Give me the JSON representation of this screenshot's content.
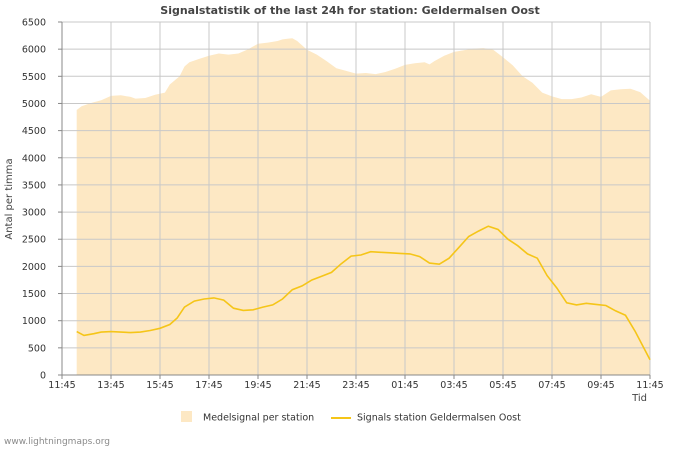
{
  "watermark": "www.lightningmaps.org",
  "chart_data": {
    "type": "area+line",
    "title": "Signalstatistik of the last 24h for station: Geldermalsen Oost",
    "ylabel": "Antal per timma",
    "xlabel": "Tid",
    "ylim": [
      0,
      6500
    ],
    "yticks": [
      0,
      500,
      1000,
      1500,
      2000,
      2500,
      3000,
      3500,
      4000,
      4500,
      5000,
      5500,
      6000,
      6500
    ],
    "xlim": [
      0,
      24
    ],
    "xticks": [
      {
        "v": 0,
        "label": "11:45"
      },
      {
        "v": 2,
        "label": "13:45"
      },
      {
        "v": 4,
        "label": "15:45"
      },
      {
        "v": 6,
        "label": "17:45"
      },
      {
        "v": 8,
        "label": "19:45"
      },
      {
        "v": 10,
        "label": "21:45"
      },
      {
        "v": 12,
        "label": "23:45"
      },
      {
        "v": 14,
        "label": "01:45"
      },
      {
        "v": 16,
        "label": "03:45"
      },
      {
        "v": 18,
        "label": "05:45"
      },
      {
        "v": 20,
        "label": "07:45"
      },
      {
        "v": 22,
        "label": "09:45"
      },
      {
        "v": 24,
        "label": "11:45"
      }
    ],
    "grid": true,
    "series": [
      {
        "name": "Medelsignal per station",
        "kind": "area",
        "color": "#fde8c4",
        "x": [
          0.6,
          0.8,
          1.2,
          1.6,
          2.0,
          2.4,
          2.8,
          3.0,
          3.4,
          3.8,
          4.2,
          4.4,
          4.8,
          5.0,
          5.2,
          5.6,
          6.0,
          6.4,
          6.8,
          7.2,
          7.6,
          8.0,
          8.4,
          8.8,
          9.0,
          9.2,
          9.4,
          9.6,
          10.0,
          10.4,
          10.8,
          11.2,
          11.6,
          12.0,
          12.4,
          12.8,
          13.2,
          13.6,
          14.0,
          14.4,
          14.8,
          15.0,
          15.2,
          15.6,
          16.0,
          16.4,
          16.8,
          17.2,
          17.6,
          18.0,
          18.4,
          18.8,
          19.2,
          19.6,
          20.0,
          20.4,
          20.8,
          21.2,
          21.6,
          22.0,
          22.4,
          22.8,
          23.2,
          23.6,
          24.0
        ],
        "values": [
          4880,
          4950,
          5010,
          5060,
          5140,
          5150,
          5120,
          5090,
          5100,
          5160,
          5200,
          5350,
          5500,
          5680,
          5760,
          5820,
          5880,
          5920,
          5900,
          5920,
          6000,
          6100,
          6120,
          6150,
          6180,
          6190,
          6200,
          6150,
          5990,
          5900,
          5780,
          5650,
          5600,
          5550,
          5560,
          5540,
          5580,
          5640,
          5710,
          5740,
          5760,
          5720,
          5780,
          5880,
          5950,
          5980,
          6010,
          6020,
          5990,
          5850,
          5700,
          5500,
          5380,
          5200,
          5130,
          5080,
          5080,
          5110,
          5170,
          5120,
          5240,
          5260,
          5270,
          5210,
          5050
        ]
      },
      {
        "name": "Signals station Geldermalsen Oost",
        "kind": "line",
        "color": "#f5c518",
        "x": [
          0.6,
          0.9,
          1.3,
          1.6,
          2.0,
          2.4,
          2.8,
          3.2,
          3.6,
          4.0,
          4.4,
          4.7,
          5.0,
          5.4,
          5.8,
          6.2,
          6.6,
          7.0,
          7.4,
          7.8,
          8.2,
          8.6,
          9.0,
          9.4,
          9.8,
          10.2,
          10.6,
          11.0,
          11.4,
          11.8,
          12.2,
          12.6,
          13.0,
          13.4,
          13.8,
          14.2,
          14.6,
          15.0,
          15.4,
          15.8,
          16.2,
          16.6,
          17.0,
          17.4,
          17.8,
          18.2,
          18.6,
          19.0,
          19.4,
          19.8,
          20.2,
          20.6,
          21.0,
          21.4,
          21.8,
          22.2,
          22.6,
          23.0,
          23.4,
          24.0
        ],
        "values": [
          800,
          730,
          760,
          790,
          800,
          790,
          780,
          790,
          820,
          860,
          930,
          1050,
          1250,
          1360,
          1400,
          1420,
          1380,
          1230,
          1190,
          1200,
          1250,
          1290,
          1400,
          1570,
          1640,
          1750,
          1820,
          1890,
          2050,
          2190,
          2210,
          2270,
          2260,
          2250,
          2240,
          2230,
          2180,
          2060,
          2040,
          2150,
          2350,
          2550,
          2650,
          2740,
          2680,
          2500,
          2380,
          2230,
          2150,
          1830,
          1600,
          1330,
          1290,
          1320,
          1300,
          1280,
          1180,
          1100,
          800,
          280
        ]
      }
    ],
    "legend": {
      "position": "bottom-center",
      "entries": [
        "Medelsignal per station",
        "Signals station Geldermalsen Oost"
      ]
    }
  }
}
